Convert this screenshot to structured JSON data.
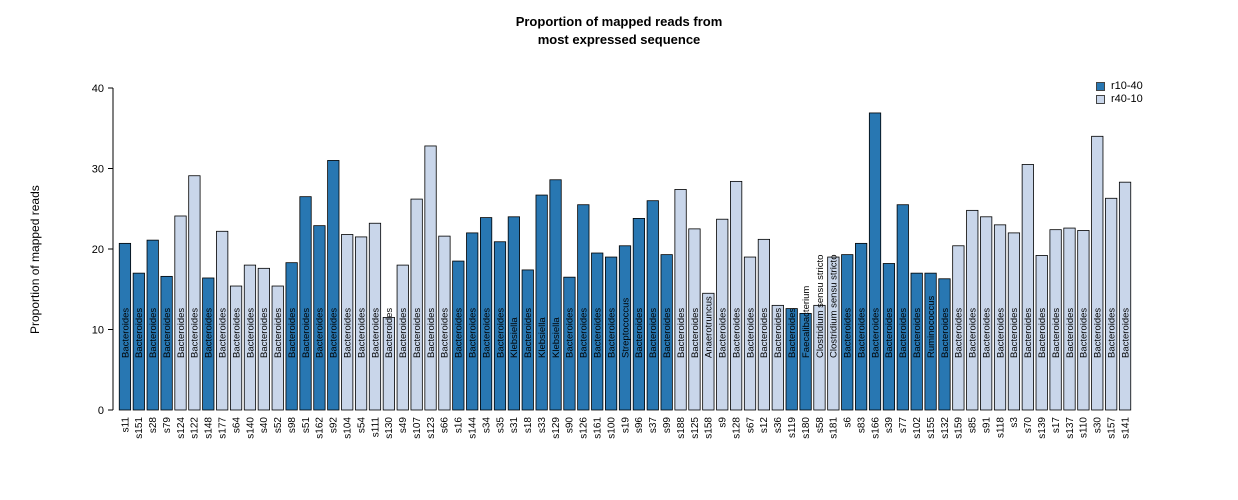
{
  "chart_data": {
    "type": "bar",
    "title": "Proportion of mapped reads from\nmost expressed sequence",
    "xlabel": "",
    "ylabel": "Proportion of mapped reads",
    "ylim": [
      0,
      40
    ],
    "yticks": [
      0,
      10,
      20,
      30,
      40
    ],
    "grid": false,
    "legend_position": "top-right",
    "legend": [
      {
        "name": "r10-40",
        "color": "#2877B2"
      },
      {
        "name": "r40-10",
        "color": "#C9D6EA"
      }
    ],
    "bars": [
      {
        "sample": "s11",
        "value": 20.7,
        "group": "r10-40",
        "taxon": "Bacteroides"
      },
      {
        "sample": "s151",
        "value": 17.0,
        "group": "r10-40",
        "taxon": "Bacteroides"
      },
      {
        "sample": "s28",
        "value": 21.1,
        "group": "r10-40",
        "taxon": "Bacteroides"
      },
      {
        "sample": "s79",
        "value": 16.6,
        "group": "r10-40",
        "taxon": "Bacteroides"
      },
      {
        "sample": "s124",
        "value": 24.1,
        "group": "r40-10",
        "taxon": "Bacteroides"
      },
      {
        "sample": "s122",
        "value": 29.1,
        "group": "r40-10",
        "taxon": "Bacteroides"
      },
      {
        "sample": "s148",
        "value": 16.4,
        "group": "r10-40",
        "taxon": "Bacteroides"
      },
      {
        "sample": "s177",
        "value": 22.2,
        "group": "r40-10",
        "taxon": "Bacteroides"
      },
      {
        "sample": "s64",
        "value": 15.4,
        "group": "r40-10",
        "taxon": "Bacteroides"
      },
      {
        "sample": "s140",
        "value": 18.0,
        "group": "r40-10",
        "taxon": "Bacteroides"
      },
      {
        "sample": "s40",
        "value": 17.6,
        "group": "r40-10",
        "taxon": "Bacteroides"
      },
      {
        "sample": "s52",
        "value": 15.4,
        "group": "r40-10",
        "taxon": "Bacteroides"
      },
      {
        "sample": "s98",
        "value": 18.3,
        "group": "r10-40",
        "taxon": "Bacteroides"
      },
      {
        "sample": "s51",
        "value": 26.5,
        "group": "r10-40",
        "taxon": "Bacteroides"
      },
      {
        "sample": "s162",
        "value": 22.9,
        "group": "r10-40",
        "taxon": "Bacteroides"
      },
      {
        "sample": "s92",
        "value": 31.0,
        "group": "r10-40",
        "taxon": "Bacteroides"
      },
      {
        "sample": "s104",
        "value": 21.8,
        "group": "r40-10",
        "taxon": "Bacteroides"
      },
      {
        "sample": "s54",
        "value": 21.5,
        "group": "r40-10",
        "taxon": "Bacteroides"
      },
      {
        "sample": "s111",
        "value": 23.2,
        "group": "r40-10",
        "taxon": "Bacteroides"
      },
      {
        "sample": "s130",
        "value": 11.5,
        "group": "r40-10",
        "taxon": "Bacteroides"
      },
      {
        "sample": "s49",
        "value": 18.0,
        "group": "r40-10",
        "taxon": "Bacteroides"
      },
      {
        "sample": "s107",
        "value": 26.2,
        "group": "r40-10",
        "taxon": "Bacteroides"
      },
      {
        "sample": "s123",
        "value": 32.8,
        "group": "r40-10",
        "taxon": "Bacteroides"
      },
      {
        "sample": "s66",
        "value": 21.6,
        "group": "r40-10",
        "taxon": "Bacteroides"
      },
      {
        "sample": "s16",
        "value": 18.5,
        "group": "r10-40",
        "taxon": "Bacteroides"
      },
      {
        "sample": "s144",
        "value": 22.0,
        "group": "r10-40",
        "taxon": "Bacteroides"
      },
      {
        "sample": "s34",
        "value": 23.9,
        "group": "r10-40",
        "taxon": "Bacteroides"
      },
      {
        "sample": "s35",
        "value": 20.9,
        "group": "r10-40",
        "taxon": "Bacteroides"
      },
      {
        "sample": "s31",
        "value": 24.0,
        "group": "r10-40",
        "taxon": "Klebsiella"
      },
      {
        "sample": "s18",
        "value": 17.4,
        "group": "r10-40",
        "taxon": "Bacteroides"
      },
      {
        "sample": "s33",
        "value": 26.7,
        "group": "r10-40",
        "taxon": "Klebsiella"
      },
      {
        "sample": "s129",
        "value": 28.6,
        "group": "r10-40",
        "taxon": "Klebsiella"
      },
      {
        "sample": "s90",
        "value": 16.5,
        "group": "r10-40",
        "taxon": "Bacteroides"
      },
      {
        "sample": "s126",
        "value": 25.5,
        "group": "r10-40",
        "taxon": "Bacteroides"
      },
      {
        "sample": "s161",
        "value": 19.5,
        "group": "r10-40",
        "taxon": "Bacteroides"
      },
      {
        "sample": "s100",
        "value": 19.0,
        "group": "r10-40",
        "taxon": "Bacteroides"
      },
      {
        "sample": "s19",
        "value": 20.4,
        "group": "r10-40",
        "taxon": "Streptococcus"
      },
      {
        "sample": "s96",
        "value": 23.8,
        "group": "r10-40",
        "taxon": "Bacteroides"
      },
      {
        "sample": "s37",
        "value": 26.0,
        "group": "r10-40",
        "taxon": "Bacteroides"
      },
      {
        "sample": "s99",
        "value": 19.3,
        "group": "r10-40",
        "taxon": "Bacteroides"
      },
      {
        "sample": "s188",
        "value": 27.4,
        "group": "r40-10",
        "taxon": "Bacteroides"
      },
      {
        "sample": "s125",
        "value": 22.5,
        "group": "r40-10",
        "taxon": "Bacteroides"
      },
      {
        "sample": "s158",
        "value": 14.5,
        "group": "r40-10",
        "taxon": "Anaerotruncus"
      },
      {
        "sample": "s9",
        "value": 23.7,
        "group": "r40-10",
        "taxon": "Bacteroides"
      },
      {
        "sample": "s128",
        "value": 28.4,
        "group": "r40-10",
        "taxon": "Bacteroides"
      },
      {
        "sample": "s67",
        "value": 19.0,
        "group": "r40-10",
        "taxon": "Bacteroides"
      },
      {
        "sample": "s12",
        "value": 21.2,
        "group": "r40-10",
        "taxon": "Bacteroides"
      },
      {
        "sample": "s36",
        "value": 13.0,
        "group": "r40-10",
        "taxon": "Bacteroides"
      },
      {
        "sample": "s119",
        "value": 12.6,
        "group": "r10-40",
        "taxon": "Bacteroides"
      },
      {
        "sample": "s180",
        "value": 12.0,
        "group": "r10-40",
        "taxon": "Faecalibacterium"
      },
      {
        "sample": "s58",
        "value": 13.0,
        "group": "r40-10",
        "taxon": "Clostridium sensu stricto"
      },
      {
        "sample": "s181",
        "value": 19.0,
        "group": "r40-10",
        "taxon": "Clostridium sensu stricto"
      },
      {
        "sample": "s6",
        "value": 19.3,
        "group": "r10-40",
        "taxon": "Bacteroides"
      },
      {
        "sample": "s83",
        "value": 20.7,
        "group": "r10-40",
        "taxon": "Bacteroides"
      },
      {
        "sample": "s166",
        "value": 36.9,
        "group": "r10-40",
        "taxon": "Bacteroides"
      },
      {
        "sample": "s39",
        "value": 18.2,
        "group": "r10-40",
        "taxon": "Bacteroides"
      },
      {
        "sample": "s77",
        "value": 25.5,
        "group": "r10-40",
        "taxon": "Bacteroides"
      },
      {
        "sample": "s102",
        "value": 17.0,
        "group": "r10-40",
        "taxon": "Bacteroides"
      },
      {
        "sample": "s155",
        "value": 17.0,
        "group": "r10-40",
        "taxon": "Ruminococcus"
      },
      {
        "sample": "s132",
        "value": 16.3,
        "group": "r10-40",
        "taxon": "Bacteroides"
      },
      {
        "sample": "s159",
        "value": 20.4,
        "group": "r40-10",
        "taxon": "Bacteroides"
      },
      {
        "sample": "s85",
        "value": 24.8,
        "group": "r40-10",
        "taxon": "Bacteroides"
      },
      {
        "sample": "s91",
        "value": 24.0,
        "group": "r40-10",
        "taxon": "Bacteroides"
      },
      {
        "sample": "s118",
        "value": 23.0,
        "group": "r40-10",
        "taxon": "Bacteroides"
      },
      {
        "sample": "s3",
        "value": 22.0,
        "group": "r40-10",
        "taxon": "Bacteroides"
      },
      {
        "sample": "s70",
        "value": 30.5,
        "group": "r40-10",
        "taxon": "Bacteroides"
      },
      {
        "sample": "s139",
        "value": 19.2,
        "group": "r40-10",
        "taxon": "Bacteroides"
      },
      {
        "sample": "s17",
        "value": 22.4,
        "group": "r40-10",
        "taxon": "Bacteroides"
      },
      {
        "sample": "s137",
        "value": 22.6,
        "group": "r40-10",
        "taxon": "Bacteroides"
      },
      {
        "sample": "s110",
        "value": 22.3,
        "group": "r40-10",
        "taxon": "Bacteroides"
      },
      {
        "sample": "s30",
        "value": 34.0,
        "group": "r40-10",
        "taxon": "Bacteroides"
      },
      {
        "sample": "s157",
        "value": 26.3,
        "group": "r40-10",
        "taxon": "Bacteroides"
      },
      {
        "sample": "s141",
        "value": 28.3,
        "group": "r40-10",
        "taxon": "Bacteroides"
      }
    ]
  }
}
